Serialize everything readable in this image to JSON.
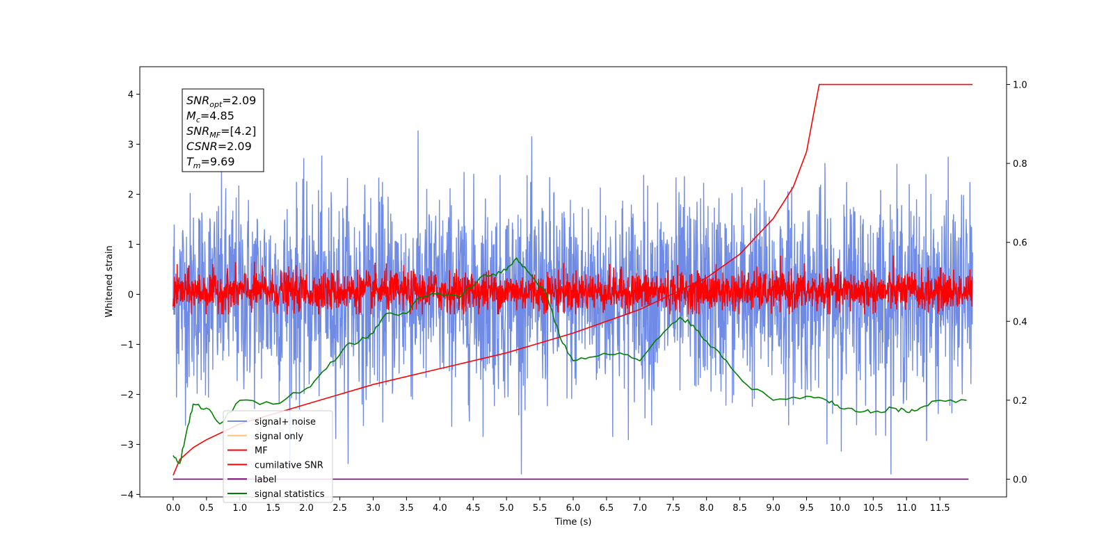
{
  "chart_data": {
    "type": "line",
    "xlabel": "Time (s)",
    "ylabel_left": "Whitened strain",
    "ylabel_right": "",
    "xlim": [
      -0.5,
      12.5
    ],
    "ylim_left": [
      -4.05,
      4.55
    ],
    "ylim_right": [
      -0.045,
      1.045
    ],
    "x_ticks": [
      "0.0",
      "0.5",
      "1.0",
      "1.5",
      "2.0",
      "2.5",
      "3.0",
      "3.5",
      "4.0",
      "4.5",
      "5.0",
      "5.5",
      "6.0",
      "6.5",
      "7.0",
      "7.5",
      "8.0",
      "8.5",
      "9.0",
      "9.5",
      "10.0",
      "10.5",
      "11.0",
      "11.5"
    ],
    "y_ticks_left": [
      "−4",
      "−3",
      "−2",
      "−1",
      "0",
      "1",
      "2",
      "3",
      "4"
    ],
    "y_ticks_right": [
      "0.0",
      "0.2",
      "0.4",
      "0.6",
      "0.8",
      "1.0"
    ],
    "grid": false,
    "legend_position": "lower-left",
    "annotation": {
      "lines": [
        {
          "base": "SNR",
          "sub": "opt",
          "value": "=2.09"
        },
        {
          "base": "M",
          "sub": "c",
          "value": "=4.85"
        },
        {
          "base": "SNR",
          "sub": "MF",
          "value": "=[4.2]"
        },
        {
          "base": "CSNR",
          "sub": "",
          "value": "=2.09"
        },
        {
          "base": "T",
          "sub": "m",
          "value": "=9.69"
        }
      ]
    },
    "series": [
      {
        "name": "signal+ noise",
        "color": "#6f8be6",
        "axis": "left",
        "description": "dense noisy whitened strain, approx range -3.6 to 4.2",
        "x_range": [
          0,
          11.99
        ],
        "y_envelope": [
          -3.6,
          4.2
        ]
      },
      {
        "name": "signal only",
        "color": "#ffc379",
        "axis": "left",
        "description": "near-zero (hidden under MF trace)"
      },
      {
        "name": "MF",
        "color": "#ff0000",
        "axis": "left",
        "description": "dense noisy matched-filter output, approx range -0.4 to 1.0",
        "x_range": [
          0,
          11.99
        ],
        "y_envelope": [
          -0.4,
          1.0
        ]
      },
      {
        "name": "cumilative SNR",
        "color": "#ff0000",
        "axis": "right",
        "x": [
          0.0,
          0.1,
          0.3,
          0.5,
          1.0,
          2.0,
          3.0,
          4.0,
          5.0,
          6.0,
          7.0,
          8.0,
          8.5,
          9.0,
          9.3,
          9.5,
          9.6,
          9.69,
          11.99
        ],
        "y": [
          0.01,
          0.05,
          0.08,
          0.1,
          0.14,
          0.19,
          0.24,
          0.28,
          0.32,
          0.37,
          0.43,
          0.51,
          0.57,
          0.66,
          0.74,
          0.83,
          0.92,
          1.0,
          1.0
        ]
      },
      {
        "name": "label",
        "color": "#800080",
        "axis": "right",
        "x": [
          0.0,
          11.93
        ],
        "y": [
          0.0,
          0.0
        ]
      },
      {
        "name": "signal statistics",
        "color": "#008000",
        "axis": "right",
        "x": [
          0.0,
          0.1,
          0.2,
          0.3,
          0.5,
          0.7,
          1.0,
          1.5,
          2.0,
          2.3,
          2.6,
          2.8,
          3.0,
          3.2,
          3.5,
          3.7,
          4.0,
          4.3,
          4.6,
          4.8,
          5.0,
          5.15,
          5.3,
          5.6,
          5.8,
          6.0,
          6.3,
          6.7,
          7.0,
          7.3,
          7.6,
          7.8,
          8.0,
          8.3,
          8.6,
          9.0,
          9.5,
          9.8,
          10.0,
          10.3,
          10.5,
          10.8,
          11.0,
          11.2,
          11.5,
          11.9
        ],
        "y": [
          0.06,
          0.04,
          0.12,
          0.19,
          0.18,
          0.14,
          0.2,
          0.19,
          0.23,
          0.28,
          0.34,
          0.35,
          0.37,
          0.42,
          0.42,
          0.46,
          0.47,
          0.46,
          0.51,
          0.52,
          0.53,
          0.56,
          0.53,
          0.47,
          0.36,
          0.3,
          0.31,
          0.32,
          0.3,
          0.36,
          0.41,
          0.39,
          0.35,
          0.3,
          0.24,
          0.2,
          0.21,
          0.2,
          0.18,
          0.17,
          0.17,
          0.18,
          0.17,
          0.18,
          0.2,
          0.2
        ]
      }
    ]
  }
}
